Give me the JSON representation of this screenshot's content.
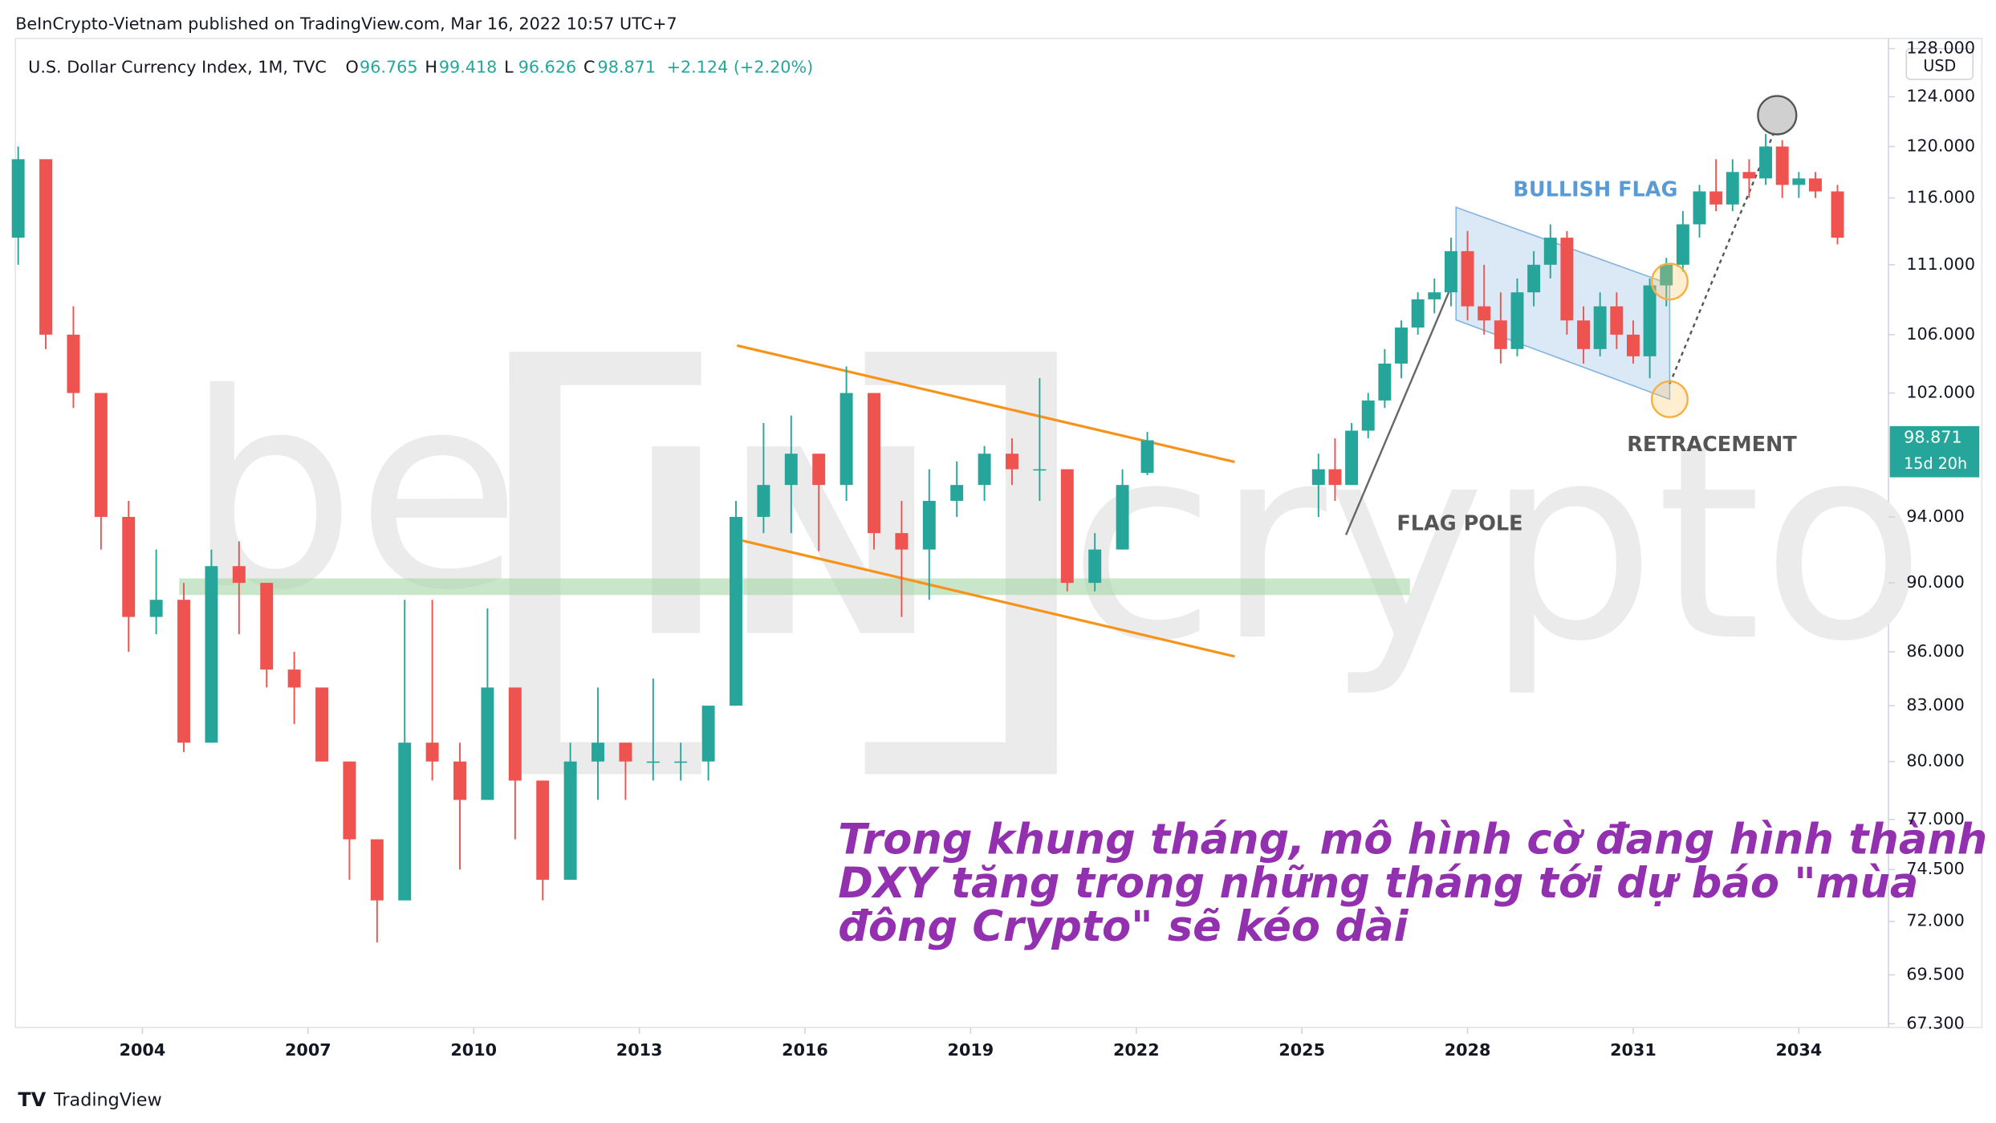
{
  "header": "BeInCrypto-Vietnam published on TradingView.com, Mar 16, 2022 10:57 UTC+7",
  "footer": "TradingView",
  "chart_data": {
    "type": "candlestick",
    "title": "U.S. Dollar Currency Index, 1M, TVC",
    "ohlc_header": [
      {
        "key": "O",
        "value": "96.765"
      },
      {
        "key": "H",
        "value": "99.418"
      },
      {
        "key": "L",
        "value": "96.626"
      },
      {
        "key": "C",
        "value": "98.871"
      }
    ],
    "change": "+2.124 (+2.20%)",
    "currency": "USD",
    "last_price": 98.871,
    "countdown": "15d 20h",
    "log_scale": true,
    "up_color": "#26a69a",
    "down_color": "#ef5350",
    "xlim": [
      2001.7,
      2035.6
    ],
    "xticks": [
      2004,
      2007,
      2010,
      2013,
      2016,
      2019,
      2022,
      2025,
      2028,
      2031,
      2034
    ],
    "ylim": [
      67.3,
      128
    ],
    "yticks": [
      {
        "value": 67.3,
        "label": "67.300"
      },
      {
        "value": 69.5,
        "label": "69.500"
      },
      {
        "value": 72,
        "label": "72.000"
      },
      {
        "value": 74.5,
        "label": "74.500"
      },
      {
        "value": 77,
        "label": "77.000"
      },
      {
        "value": 80,
        "label": "80.000"
      },
      {
        "value": 83,
        "label": "83.000"
      },
      {
        "value": 86,
        "label": "86.000"
      },
      {
        "value": 90,
        "label": "90.000"
      },
      {
        "value": 94,
        "label": "94.000"
      },
      {
        "value": 102,
        "label": "102.000"
      },
      {
        "value": 106,
        "label": "106.000"
      },
      {
        "value": 111,
        "label": "111.000"
      },
      {
        "value": 116,
        "label": "116.000"
      },
      {
        "value": 120,
        "label": "120.000"
      },
      {
        "value": 124,
        "label": "124.000"
      },
      {
        "value": 128,
        "label": "128.000"
      }
    ],
    "candles": {
      "x": [
        2001.75,
        2002.25,
        2002.75,
        2003.25,
        2003.75,
        2004.25,
        2004.75,
        2005.25,
        2005.75,
        2006.25,
        2006.75,
        2007.25,
        2007.75,
        2008.25,
        2008.75,
        2009.25,
        2009.75,
        2010.25,
        2010.75,
        2011.25,
        2011.75,
        2012.25,
        2012.75,
        2013.25,
        2013.75,
        2014.25,
        2014.75,
        2015.25,
        2015.75,
        2016.25,
        2016.75,
        2017.25,
        2017.75,
        2018.25,
        2018.75,
        2019.25,
        2019.75,
        2020.25,
        2020.75,
        2021.25,
        2021.75,
        2022.2,
        2025.3,
        2025.6,
        2025.9,
        2026.2,
        2026.5,
        2026.8,
        2027.1,
        2027.4,
        2027.7,
        2028.0,
        2028.3,
        2028.6,
        2028.9,
        2029.2,
        2029.5,
        2029.8,
        2030.1,
        2030.4,
        2030.7,
        2031.0,
        2031.3,
        2031.6,
        2031.9,
        2032.2,
        2032.5,
        2032.8,
        2033.1,
        2033.4,
        2033.7,
        2034.0,
        2034.3,
        2034.7
      ],
      "open": [
        113,
        119,
        106,
        102,
        94,
        88,
        89,
        81,
        91,
        90,
        85,
        84,
        80,
        76,
        73,
        81,
        80,
        78,
        84,
        79,
        74,
        80,
        81,
        80,
        80,
        80,
        83,
        94,
        96,
        98,
        96,
        102,
        93,
        92,
        95,
        96,
        98,
        97,
        97,
        90,
        92,
        96.765,
        96,
        97,
        96,
        99.5,
        101.5,
        104,
        106.5,
        108.5,
        109,
        112,
        108,
        107,
        105,
        109,
        111,
        113,
        107,
        105,
        108,
        106,
        104.5,
        109.5,
        111,
        114,
        116.5,
        115.5,
        118,
        117.5,
        120,
        117,
        117.5,
        116.5
      ],
      "high": [
        120,
        119,
        108,
        102,
        95,
        92,
        90,
        92,
        92.5,
        90,
        86,
        84,
        80,
        76,
        89,
        89,
        81,
        88.5,
        84,
        79,
        81,
        84,
        81,
        84.5,
        81,
        83,
        95,
        100,
        100.5,
        98,
        103.8,
        102,
        95,
        97,
        97.5,
        98.5,
        99,
        103,
        97,
        93,
        97,
        99.418,
        98,
        99,
        100,
        102,
        105,
        107,
        109,
        110,
        113,
        113.5,
        111,
        109,
        110,
        112,
        114,
        113.5,
        108,
        109,
        109,
        107,
        110,
        111.5,
        115,
        117,
        119,
        119,
        119,
        121,
        120.5,
        118,
        118,
        117
      ],
      "low": [
        111,
        105,
        101,
        92,
        86,
        87,
        80.5,
        81,
        87,
        84,
        82,
        80,
        74,
        71,
        73,
        79,
        74.5,
        78,
        76,
        73,
        74,
        78,
        78,
        79,
        79,
        79,
        83,
        93,
        93,
        91.9,
        95,
        92,
        88,
        89,
        94,
        95,
        96,
        95,
        89.5,
        89.5,
        92,
        96.626,
        94,
        95,
        96,
        99,
        101,
        103,
        106,
        107.5,
        108,
        107,
        106,
        104,
        104.5,
        108,
        110,
        106,
        104,
        104.5,
        105,
        104,
        103,
        108,
        110.5,
        113,
        115,
        115,
        116,
        117,
        116,
        116,
        116,
        112.5
      ],
      "close": [
        119,
        106,
        102,
        94,
        88,
        89,
        81,
        91,
        90,
        85,
        84,
        80,
        76,
        73,
        81,
        80,
        78,
        84,
        79,
        74,
        80,
        81,
        80,
        80,
        80,
        83,
        94,
        96,
        98,
        96,
        102,
        93,
        92,
        95,
        96,
        98,
        97,
        97,
        90,
        92,
        96,
        98.871,
        97,
        96,
        99.5,
        101.5,
        104,
        106.5,
        108.5,
        109,
        112,
        108,
        107,
        105,
        109,
        111,
        113,
        107,
        105,
        108,
        106,
        104.5,
        109.5,
        111,
        114,
        116.5,
        115.5,
        118,
        117.5,
        120,
        117,
        117.5,
        116.5,
        113
      ]
    },
    "annotations": {
      "bullish_flag": "BULLISH FLAG",
      "flag_pole": "FLAG POLE",
      "retracement": "RETRACEMENT",
      "note": [
        "Trong khung tháng, mô hình cờ đang hình thành",
        "DXY tăng trong những tháng tới dự báo \"mùa",
        "đông Crypto\" sẽ kéo dài"
      ]
    },
    "watermark": [
      "be",
      "IN",
      "crypto"
    ]
  }
}
